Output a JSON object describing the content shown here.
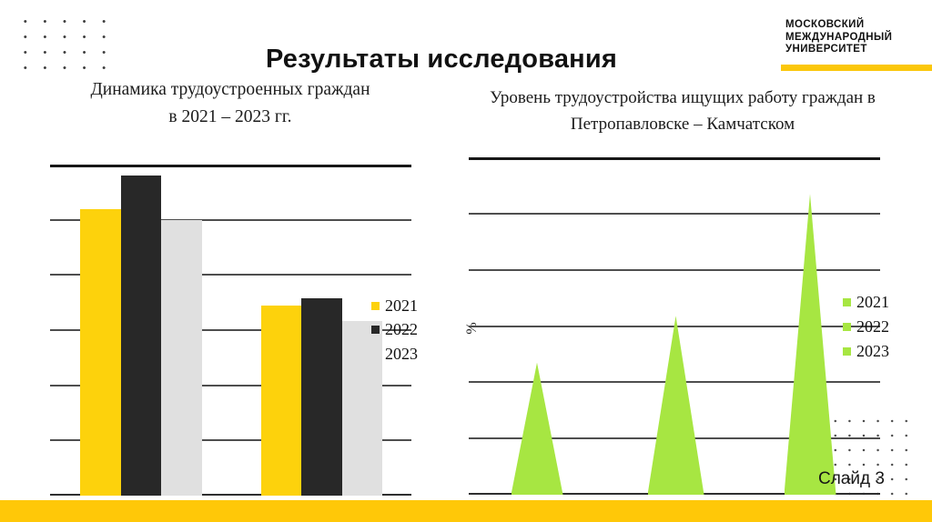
{
  "slide": {
    "title": "Результаты исследования",
    "slide_number_label": "Слайд 3"
  },
  "logo": {
    "lines": [
      "МОСКОВСКИЙ",
      "МЕЖДУНАРОДНЫЙ",
      "УНИВЕРСИТЕТ"
    ],
    "underline_color": "#FBC70B"
  },
  "colors": {
    "footer_yellow": "#FFC808",
    "chart_yellow": "#FDD20C",
    "chart_black": "#282828",
    "chart_gray": "#E0E0E0",
    "chart_green": "#A7E642"
  },
  "chart_data": [
    {
      "type": "bar",
      "title": "Динамика трудоустроенных граждан в 2021 – 2023 гг.",
      "title_lines": [
        "Динамика трудоустроенных граждан",
        "в 2021 – 2023 гг."
      ],
      "categories": [
        "",
        ""
      ],
      "series": [
        {
          "name": "2021",
          "color": "#FDD20C",
          "values": [
            5.2,
            3.45
          ]
        },
        {
          "name": "2022",
          "color": "#282828",
          "values": [
            5.8,
            3.57
          ]
        },
        {
          "name": "2023",
          "color": "#E0E0E0",
          "values": [
            5.0,
            3.17
          ]
        }
      ],
      "xlabel": "",
      "ylabel": "",
      "ylim": [
        0,
        6
      ],
      "grid": true,
      "axis_tick_labels_visible": false,
      "legend_position": "right"
    },
    {
      "type": "area-triangle",
      "title": "Уровень трудоустройства ищущих работу граждан в Петропавловске – Камчатском",
      "title_lines": [
        "Уровень трудоустройства ищущих работу граждан в",
        "Петропавловске – Камчатском"
      ],
      "categories": [
        "2021",
        "2022",
        "2023"
      ],
      "values": [
        2.35,
        3.18,
        5.35
      ],
      "color": "#A7E642",
      "legend": [
        "2021",
        "2022",
        "2023"
      ],
      "xlabel": "",
      "ylabel": "%",
      "ylim": [
        0,
        6
      ],
      "grid": true,
      "axis_tick_labels_visible": false,
      "legend_position": "right"
    }
  ]
}
